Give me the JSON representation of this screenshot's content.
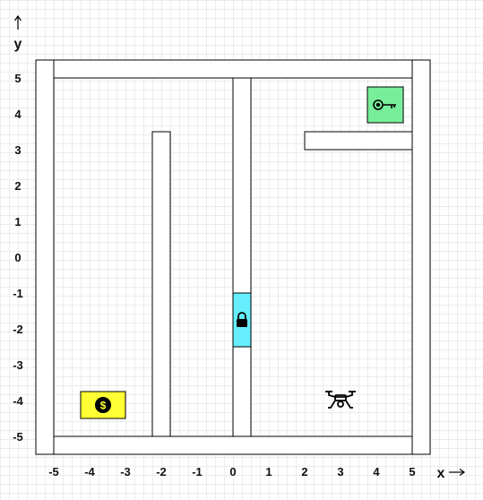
{
  "axes": {
    "x_label": "x",
    "y_label": "y",
    "x_ticks": [
      "-5",
      "-4",
      "-3",
      "-2",
      "-1",
      "0",
      "1",
      "2",
      "3",
      "4",
      "5"
    ],
    "y_ticks": [
      "5",
      "4",
      "3",
      "2",
      "1",
      "0",
      "-1",
      "-2",
      "-3",
      "-4",
      "-5"
    ]
  },
  "colors": {
    "coin_zone": "#ffff33",
    "key_zone": "#77ee99",
    "lock_door": "#66eeff",
    "wall_fill": "#ffffff",
    "wall_stroke": "#000000"
  },
  "items": {
    "coin": {
      "icon": "dollar-coin-icon",
      "x": -3.6,
      "y": -4.15
    },
    "key": {
      "icon": "key-icon",
      "x": 4.25,
      "y": 4.25
    },
    "lock": {
      "icon": "padlock-icon",
      "x": 0.25,
      "y": -1.75
    },
    "drone": {
      "icon": "drone-icon",
      "x": 3.0,
      "y": -4.0
    }
  }
}
